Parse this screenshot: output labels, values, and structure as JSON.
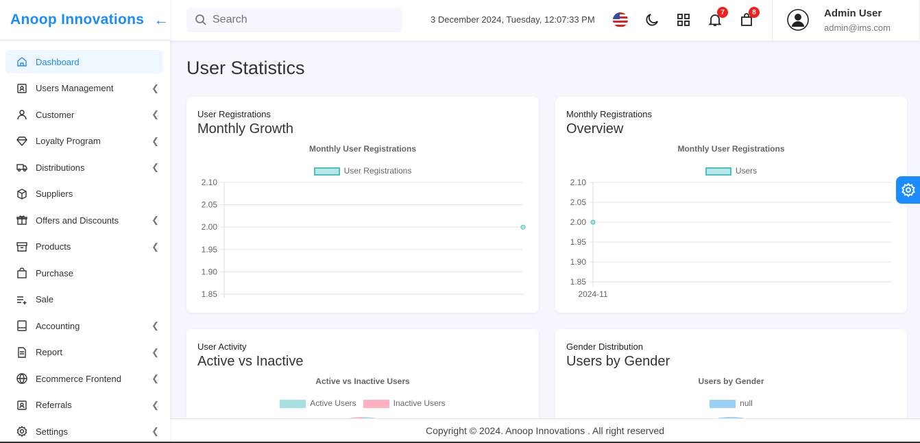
{
  "brand": {
    "name": "Anoop Innovations"
  },
  "sidebar": {
    "items": [
      {
        "label": "Dashboard",
        "icon": "home-icon",
        "expandable": false,
        "active": true
      },
      {
        "label": "Users Management",
        "icon": "user-badge-icon",
        "expandable": true
      },
      {
        "label": "Customer",
        "icon": "user-icon",
        "expandable": true
      },
      {
        "label": "Loyalty Program",
        "icon": "diamond-icon",
        "expandable": true
      },
      {
        "label": "Distributions",
        "icon": "truck-icon",
        "expandable": true
      },
      {
        "label": "Suppliers",
        "icon": "box-icon",
        "expandable": false
      },
      {
        "label": "Offers and Discounts",
        "icon": "gift-icon",
        "expandable": true
      },
      {
        "label": "Products",
        "icon": "archive-icon",
        "expandable": true
      },
      {
        "label": "Purchase",
        "icon": "shopping-bag-icon",
        "expandable": false
      },
      {
        "label": "Sale",
        "icon": "list-plus-icon",
        "expandable": false
      },
      {
        "label": "Accounting",
        "icon": "ledger-icon",
        "expandable": true
      },
      {
        "label": "Report",
        "icon": "file-icon",
        "expandable": true
      },
      {
        "label": "Ecommerce Frontend",
        "icon": "globe-icon",
        "expandable": true
      },
      {
        "label": "Referrals",
        "icon": "user-badge-icon",
        "expandable": true
      },
      {
        "label": "Settings",
        "icon": "gear-icon",
        "expandable": true
      }
    ]
  },
  "header": {
    "search_placeholder": "Search",
    "datetime": "3 December 2024, Tuesday, 12:07:33 PM",
    "notifications": "7",
    "cart": "8",
    "user_name": "Admin User",
    "user_email": "admin@ims.com"
  },
  "page": {
    "title": "User Statistics"
  },
  "colors": {
    "accent": "#1a8cff",
    "teal": "#4bc0c0",
    "pink": "#ffb1c1",
    "blue": "#9ad0f5"
  },
  "cards": [
    {
      "subtitle": "User Registrations",
      "heading": "Monthly Growth"
    },
    {
      "subtitle": "Monthly Registrations",
      "heading": "Overview"
    },
    {
      "subtitle": "User Activity",
      "heading": "Active vs Inactive"
    },
    {
      "subtitle": "Gender Distribution",
      "heading": "Users by Gender"
    }
  ],
  "chart_data": [
    {
      "type": "line",
      "title": "Monthly User Registrations",
      "legend": [
        "User Registrations"
      ],
      "yticks": [
        "2.10",
        "2.05",
        "2.00",
        "1.95",
        "1.90",
        "1.85"
      ],
      "ylim": [
        1.85,
        2.1
      ],
      "categories": [
        ""
      ],
      "series": [
        {
          "name": "User Registrations",
          "values": [
            2
          ]
        }
      ],
      "grid": true,
      "legend_position": "top"
    },
    {
      "type": "line",
      "title": "Monthly User Registrations",
      "legend": [
        "Users"
      ],
      "yticks": [
        "2.10",
        "2.05",
        "2.00",
        "1.95",
        "1.90",
        "1.85"
      ],
      "ylim": [
        1.85,
        2.1
      ],
      "categories": [
        "2024-11"
      ],
      "series": [
        {
          "name": "Users",
          "values": [
            2
          ]
        }
      ],
      "grid": true,
      "legend_position": "top"
    },
    {
      "type": "pie",
      "title": "Active vs Inactive Users",
      "legend": [
        "Active Users",
        "Inactive Users"
      ]
    },
    {
      "type": "pie",
      "title": "Users by Gender",
      "legend": [
        "null"
      ]
    }
  ],
  "footer": {
    "text": "Copyright © 2024. Anoop Innovations . All right reserved"
  }
}
